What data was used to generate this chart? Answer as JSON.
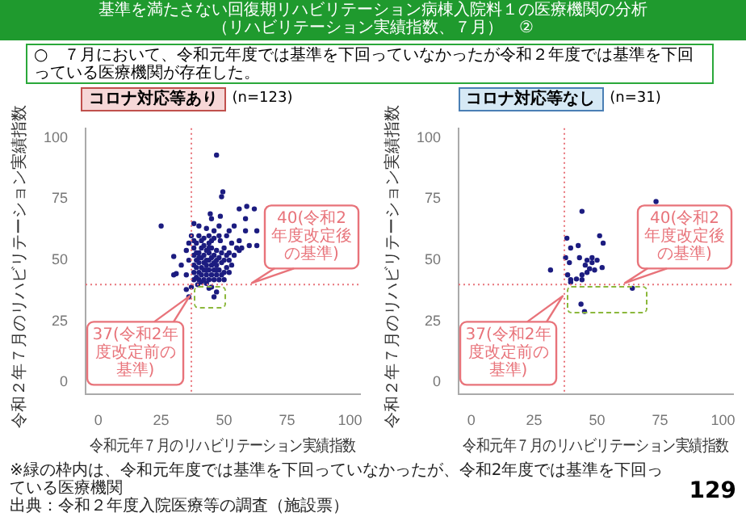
{
  "chart_data": [
    {
      "type": "scatter",
      "title": "コロナ対応等あり",
      "subtitle": "(n=123)",
      "xlabel": "令和元年７月のリハビリテーション実績指数",
      "ylabel": "令和２年７月のリハビリテーション実績指数",
      "color": "#1c1c80",
      "marker": "circle",
      "xlim": [
        -5,
        104
      ],
      "ylim": [
        -5,
        104
      ],
      "xticks": [
        0,
        25,
        50,
        75,
        100
      ],
      "yticks": [
        0,
        25,
        50,
        75,
        100
      ],
      "x": [
        25,
        47,
        49.5,
        49,
        38,
        44.5,
        45,
        56,
        59,
        62,
        58.5,
        58.5,
        63,
        63,
        60,
        52,
        54,
        51,
        48.5,
        48,
        42,
        44,
        46,
        48,
        48.5,
        30,
        33,
        31,
        35,
        36,
        30,
        35,
        36,
        35,
        37,
        39.5,
        45,
        46,
        43,
        47,
        44,
        38,
        38,
        38,
        38,
        38,
        39,
        39,
        39,
        39,
        40,
        40,
        40,
        40,
        40,
        41,
        41,
        41,
        41,
        42,
        42,
        42,
        42,
        42,
        43,
        43,
        43,
        43,
        44,
        44,
        44,
        44,
        44,
        45,
        45,
        45,
        45,
        46,
        46,
        46,
        46,
        47,
        47,
        47,
        47,
        48,
        48,
        48,
        49,
        49,
        50,
        50,
        50,
        51,
        52,
        52,
        53,
        54,
        55,
        56,
        56,
        57,
        37,
        36,
        40,
        46,
        52,
        50,
        38,
        43,
        41,
        39,
        41,
        43,
        45,
        47,
        49,
        51,
        53,
        40,
        44
      ],
      "values": [
        64,
        93,
        78,
        76,
        65,
        69,
        67,
        71,
        72,
        71,
        67,
        62,
        62,
        56,
        56,
        62,
        64,
        60,
        68,
        64,
        59,
        60,
        59,
        60,
        58,
        51.5,
        48,
        44.5,
        54,
        50,
        44,
        44,
        35,
        38,
        39,
        40,
        39,
        35,
        40.5,
        37,
        38.5,
        42,
        45,
        48,
        52,
        55,
        43,
        47,
        50,
        57,
        42,
        45,
        49,
        53,
        60,
        44,
        47,
        51,
        55,
        42,
        46,
        49,
        52,
        56,
        44,
        48,
        50,
        54,
        42,
        46,
        50,
        53,
        57,
        44,
        48,
        51,
        55,
        42,
        46,
        49,
        52,
        44,
        48,
        50,
        54,
        42,
        46,
        51,
        49,
        53,
        45,
        50,
        55,
        47,
        50,
        53,
        57,
        52,
        55,
        54,
        58,
        55,
        60,
        57,
        64,
        62,
        45,
        42,
        58,
        63,
        41,
        53,
        58,
        46,
        58,
        46,
        44,
        52,
        48,
        51,
        55
      ],
      "ref_lines": [
        {
          "axis": "x",
          "value": 37,
          "label": "37(令和2年度改定前の基準)",
          "color": "#e8737a",
          "line_style": "dotted"
        },
        {
          "axis": "y",
          "value": 40,
          "label": "40(令和2年度改定後の基準)",
          "color": "#e8737a",
          "line_style": "dotted"
        }
      ],
      "annotations": [
        "基準を満たさない回復期リハビリテーション病棟入院料１の医療機関の分析",
        "（リハビリテーション実績指数、７月）　②",
        "○　７月において、令和元年度では基準を下回っていなかったが令和２年度では基準を下回っている医療機関が存在した。"
      ]
    },
    {
      "type": "scatter",
      "title": "コロナ対応等なし",
      "subtitle": "(n=31)",
      "xlabel": "令和元年７月のリハビリテーション実績指数",
      "ylabel": "令和２年７月のリハビリテーション実績指数",
      "color": "#1c1c80",
      "marker": "circle",
      "xlim": [
        -5,
        104
      ],
      "ylim": [
        -5,
        104
      ],
      "xticks": [
        0,
        25,
        50,
        75,
        100
      ],
      "yticks": [
        0,
        25,
        50,
        75,
        100
      ],
      "x": [
        73.4,
        44,
        31.5,
        38,
        39.5,
        42.5,
        37.5,
        39,
        38.3,
        39.5,
        39.5,
        44,
        44,
        46,
        46,
        48,
        47,
        49,
        50,
        51,
        52.4,
        52,
        64,
        43.6,
        45,
        43,
        45.3,
        48,
        41.8
      ],
      "values": [
        74,
        70,
        46,
        59,
        55,
        56,
        51,
        49,
        44,
        42,
        41,
        44,
        42,
        45,
        50,
        51,
        46.5,
        46,
        50,
        60,
        57,
        47,
        38.5,
        32,
        29,
        51,
        48,
        49,
        42.3
      ],
      "ref_lines": [
        {
          "axis": "x",
          "value": 37,
          "label": "37(令和2年度改定前の基準)",
          "color": "#e8737a",
          "line_style": "dotted"
        },
        {
          "axis": "y",
          "value": 40,
          "label": "40(令和2年度改定後の基準)",
          "color": "#e8737a",
          "line_style": "dotted"
        }
      ],
      "annotations": [
        "※緑の枠内は、令和元年度では基準を下回っていなかったが、令和2年度では基準を下回っている医療機関",
        "出典：令和２年度入院医療等の調査（施設票）",
        "129"
      ]
    }
  ]
}
